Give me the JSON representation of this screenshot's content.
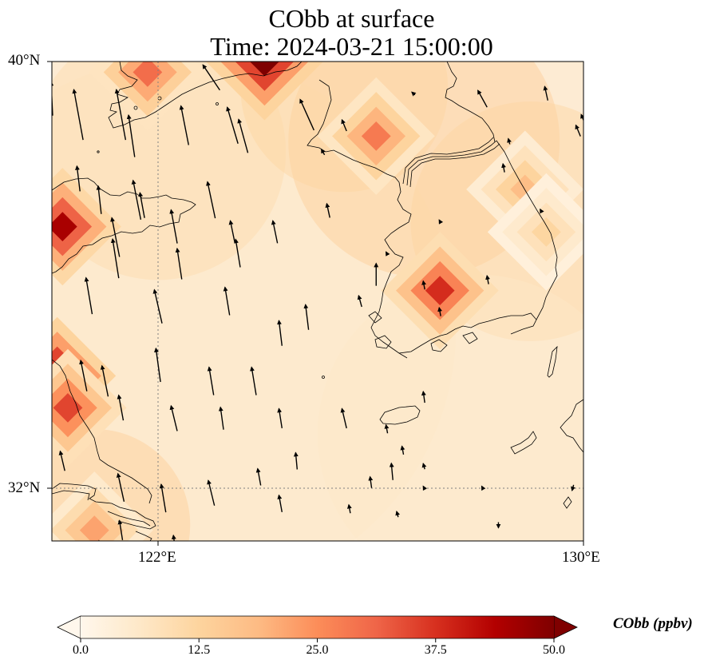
{
  "title": {
    "line1": "CObb at surface",
    "line2": "Time: 2024-03-21 15:00:00"
  },
  "map": {
    "lon_range": [
      120,
      130
    ],
    "lat_range": [
      31,
      40
    ],
    "lat_ticks": [
      {
        "value": 40,
        "label": "40°N"
      },
      {
        "value": 32,
        "label": "32°N"
      }
    ],
    "lon_ticks": [
      {
        "value": 122,
        "label": "122°E"
      },
      {
        "value": 130,
        "label": "130°E"
      }
    ],
    "gridlines": {
      "lat": [
        32
      ],
      "lon": [
        122
      ]
    },
    "colors": {
      "background": "#fff5eb",
      "coast": "#000000",
      "arrow": "#000000",
      "grid": "#808080"
    }
  },
  "chart_data": {
    "type": "heatmap",
    "title": "CObb at surface\nTime: 2024-03-21 15:00:00",
    "variable": "CObb",
    "units": "ppbv",
    "colormap": "OrRd",
    "vmin": 0.0,
    "vmax": 50.0,
    "extend": "both",
    "hotspots": [
      {
        "lon": 121.8,
        "lat": 39.8,
        "value": 30
      },
      {
        "lon": 124.0,
        "lat": 40.0,
        "value": 50
      },
      {
        "lon": 120.2,
        "lat": 36.9,
        "value": 45
      },
      {
        "lon": 120.1,
        "lat": 34.1,
        "value": 50
      },
      {
        "lon": 120.3,
        "lat": 33.5,
        "value": 35
      },
      {
        "lon": 126.1,
        "lat": 38.6,
        "value": 28
      },
      {
        "lon": 127.3,
        "lat": 35.7,
        "value": 38
      },
      {
        "lon": 128.9,
        "lat": 37.6,
        "value": 18
      },
      {
        "lon": 129.3,
        "lat": 36.8,
        "value": 12
      },
      {
        "lon": 120.8,
        "lat": 31.2,
        "value": 22
      }
    ],
    "wind_vectors": [
      [
        120.0,
        39.3,
        0.05,
        0.6
      ],
      [
        120.5,
        39.0,
        0.3,
        0.9
      ],
      [
        121.3,
        39.0,
        0.3,
        0.9
      ],
      [
        121.5,
        38.6,
        0.2,
        0.75
      ],
      [
        121.6,
        37.4,
        0.25,
        0.7
      ],
      [
        122.5,
        38.8,
        0.25,
        0.7
      ],
      [
        123.0,
        39.7,
        0.55,
        0.45
      ],
      [
        123.4,
        38.8,
        0.35,
        0.65
      ],
      [
        123.6,
        38.6,
        0.3,
        0.6
      ],
      [
        124.8,
        39.0,
        0.45,
        0.55
      ],
      [
        125.5,
        38.8,
        0.15,
        0.2
      ],
      [
        125.1,
        38.3,
        0.1,
        0.1
      ],
      [
        126.8,
        39.4,
        0.1,
        0.05
      ],
      [
        128.1,
        39.3,
        0.3,
        0.3
      ],
      [
        129.3,
        39.4,
        0.1,
        0.25
      ],
      [
        130.0,
        38.9,
        0.15,
        0.2
      ],
      [
        129.9,
        38.7,
        0.15,
        0.2
      ],
      [
        128.6,
        38.5,
        0.05,
        0.1
      ],
      [
        128.5,
        38.0,
        0.05,
        0.15
      ],
      [
        129.2,
        37.2,
        0.05,
        0.05
      ],
      [
        127.3,
        37.0,
        0.05,
        0.05
      ],
      [
        125.2,
        37.2,
        0.1,
        0.25
      ],
      [
        126.3,
        36.4,
        0.05,
        0.05
      ],
      [
        120.5,
        37.8,
        0.1,
        0.45
      ],
      [
        120.9,
        37.4,
        0.1,
        0.5
      ],
      [
        121.7,
        37.3,
        0.15,
        0.45
      ],
      [
        123.0,
        37.4,
        0.25,
        0.65
      ],
      [
        122.3,
        36.9,
        0.2,
        0.6
      ],
      [
        121.2,
        36.7,
        0.25,
        0.7
      ],
      [
        123.4,
        36.8,
        0.15,
        0.4
      ],
      [
        124.2,
        36.8,
        0.15,
        0.4
      ],
      [
        122.4,
        36.2,
        0.15,
        0.55
      ],
      [
        123.5,
        36.4,
        0.15,
        0.5
      ],
      [
        121.2,
        36.3,
        0.2,
        0.7
      ],
      [
        120.7,
        35.6,
        0.2,
        0.65
      ],
      [
        122.0,
        35.4,
        0.25,
        0.6
      ],
      [
        123.3,
        35.5,
        0.15,
        0.5
      ],
      [
        124.3,
        34.9,
        0.1,
        0.45
      ],
      [
        124.8,
        35.2,
        0.1,
        0.45
      ],
      [
        126.1,
        36.0,
        0.0,
        0.4
      ],
      [
        127.0,
        35.8,
        0.05,
        0.15
      ],
      [
        127.3,
        35.3,
        0.05,
        0.15
      ],
      [
        125.8,
        35.5,
        0.1,
        0.2
      ],
      [
        128.2,
        35.9,
        0.05,
        0.15
      ],
      [
        120.6,
        34.1,
        0.2,
        0.55
      ],
      [
        121.0,
        34.0,
        0.2,
        0.55
      ],
      [
        122.0,
        34.3,
        0.15,
        0.6
      ],
      [
        123.0,
        34.0,
        0.15,
        0.5
      ],
      [
        123.8,
        34.0,
        0.15,
        0.5
      ],
      [
        121.3,
        33.5,
        0.15,
        0.45
      ],
      [
        122.3,
        33.3,
        0.2,
        0.45
      ],
      [
        123.2,
        33.3,
        0.1,
        0.4
      ],
      [
        124.3,
        33.3,
        0.1,
        0.35
      ],
      [
        125.5,
        33.3,
        0.15,
        0.35
      ],
      [
        127.0,
        33.7,
        0.05,
        0.2
      ],
      [
        126.3,
        33.1,
        0.05,
        0.15
      ],
      [
        124.6,
        32.5,
        0.05,
        0.3
      ],
      [
        126.4,
        32.3,
        0.05,
        0.3
      ],
      [
        126.0,
        32.1,
        0.05,
        0.2
      ],
      [
        126.6,
        32.7,
        0.05,
        0.15
      ],
      [
        127.0,
        32.4,
        0.05,
        0.1
      ],
      [
        120.2,
        32.5,
        0.15,
        0.35
      ],
      [
        121.3,
        32.0,
        0.2,
        0.5
      ],
      [
        122.1,
        31.8,
        0.15,
        0.5
      ],
      [
        123.0,
        31.9,
        0.2,
        0.45
      ],
      [
        123.9,
        32.2,
        0.1,
        0.3
      ],
      [
        124.3,
        31.7,
        0.1,
        0.3
      ],
      [
        125.6,
        31.6,
        0.05,
        0.15
      ],
      [
        126.5,
        31.5,
        0.05,
        0.1
      ],
      [
        127.0,
        32.0,
        0.05,
        0.05
      ],
      [
        128.1,
        32.0,
        0.05,
        0.05
      ],
      [
        128.4,
        31.3,
        0.0,
        -0.1
      ],
      [
        129.8,
        32.0,
        0.05,
        -0.1
      ],
      [
        121.3,
        31.2,
        0.1,
        0.35
      ],
      [
        122.3,
        31.0,
        0.05,
        0.2
      ],
      [
        120.9,
        30.9,
        0.05,
        0.2
      ]
    ]
  },
  "colorbar": {
    "label": "CObb (ppbv)",
    "ticks": [
      {
        "value": 0.0,
        "label": "0.0"
      },
      {
        "value": 12.5,
        "label": "12.5"
      },
      {
        "value": 25.0,
        "label": "25.0"
      },
      {
        "value": 37.5,
        "label": "37.5"
      },
      {
        "value": 50.0,
        "label": "50.0"
      }
    ],
    "stops": [
      "#fff7ec",
      "#fee8c8",
      "#fdd49e",
      "#fdbb84",
      "#fc8d59",
      "#ef6548",
      "#d7301f",
      "#b30000",
      "#7f0000"
    ]
  }
}
